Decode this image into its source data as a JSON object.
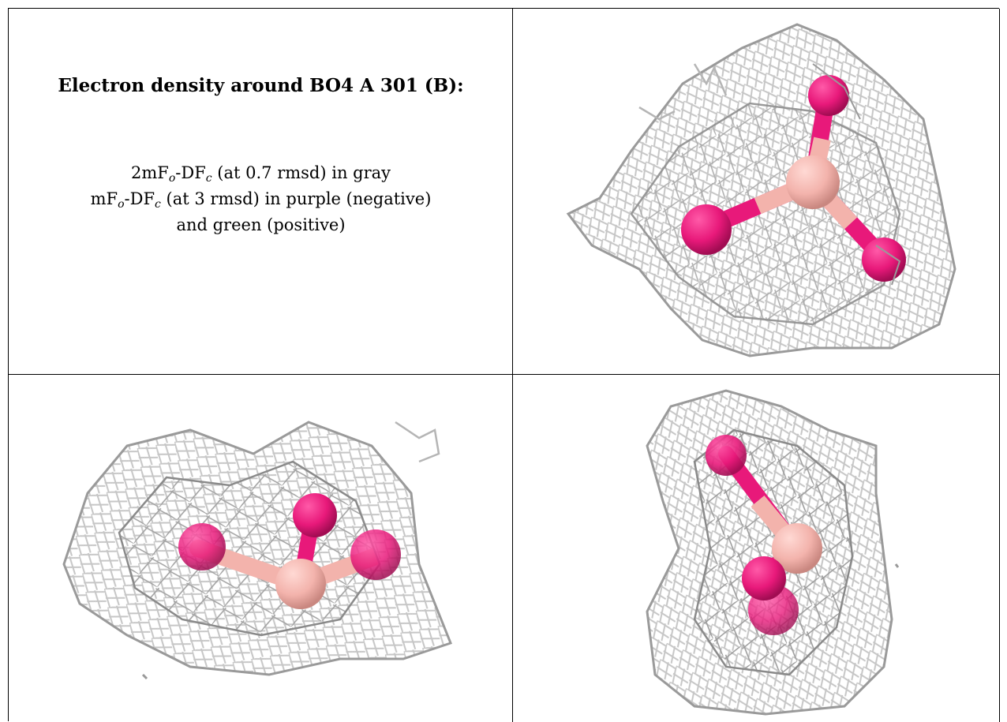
{
  "title": "Electron density around BO4 A 301 (B):",
  "legend": {
    "line1": {
      "pre": "2mF",
      "s1": "o",
      "mid": "-DF",
      "s2": "c",
      "post": " (at 0.7 rmsd) in gray"
    },
    "line2": {
      "pre": "mF",
      "s1": "o",
      "mid": "-DF",
      "s2": "c",
      "post": " (at 3 rmsd) in purple (negative)"
    },
    "line3": "and green (positive)"
  },
  "colors": {
    "mesh_light": "#c9c9c9",
    "mesh_dark": "#8a8a8a",
    "oxygen": "#e8197a",
    "oxygen_dark": "#b5105c",
    "boron": "#f3b3ac",
    "boron_dark": "#d98b86"
  }
}
